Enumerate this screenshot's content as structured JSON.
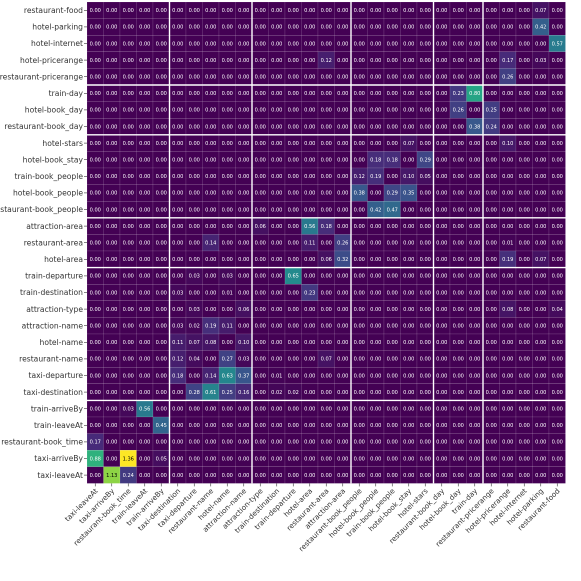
{
  "chart_data": {
    "type": "heatmap",
    "title": "",
    "xlabel": "",
    "ylabel": "",
    "colormap": "viridis",
    "vmin": 0,
    "vmax": 1.36,
    "rows": [
      "restaurant-food",
      "hotel-parking",
      "hotel-internet",
      "hotel-pricerange",
      "restaurant-pricerange",
      "train-day",
      "hotel-book_day",
      "restaurant-book_day",
      "hotel-stars",
      "hotel-book_stay",
      "train-book_people",
      "hotel-book_people",
      "restaurant-book_people",
      "attraction-area",
      "restaurant-area",
      "hotel-area",
      "train-departure",
      "train-destination",
      "attraction-type",
      "attraction-name",
      "hotel-name",
      "restaurant-name",
      "taxi-departure",
      "taxi-destination",
      "train-arriveBy",
      "train-leaveAt",
      "restaurant-book_time",
      "taxi-arriveBy",
      "taxi-leaveAt"
    ],
    "columns": [
      "taxi-leaveAt",
      "taxi-arriveBy",
      "restaurant-book_time",
      "train-leaveAt",
      "train-arriveBy",
      "taxi-destination",
      "taxi-departure",
      "restaurant-name",
      "hotel-name",
      "attraction-name",
      "attraction-type",
      "train-destination",
      "train-departure",
      "hotel-area",
      "restaurant-area",
      "attraction-area",
      "restaurant-book_people",
      "hotel-book_people",
      "train-book_people",
      "hotel-book_stay",
      "hotel-stars",
      "restaurant-book_day",
      "hotel-book_day",
      "train-day",
      "restaurant-pricerange",
      "hotel-pricerange",
      "hotel-internet",
      "hotel-parking",
      "restaurant-food"
    ],
    "group_separators_after_column": [
      4,
      9,
      15,
      20,
      23
    ],
    "group_separators_after_row": [
      4,
      7,
      12,
      15,
      23
    ],
    "values": [
      [
        0.0,
        0.0,
        0.0,
        0.0,
        0.0,
        0.0,
        0.0,
        0.0,
        0.0,
        0.0,
        0.0,
        0.0,
        0.0,
        0.0,
        0.0,
        0.0,
        0.0,
        0.0,
        0.0,
        0.0,
        0.0,
        0.0,
        0.0,
        0.0,
        0.0,
        0.0,
        0.0,
        0.07,
        0.0
      ],
      [
        0.0,
        0.0,
        0.0,
        0.0,
        0.0,
        0.0,
        0.0,
        0.0,
        0.0,
        0.0,
        0.0,
        0.0,
        0.0,
        0.0,
        0.0,
        0.0,
        0.0,
        0.0,
        0.0,
        0.0,
        0.0,
        0.0,
        0.0,
        0.0,
        0.0,
        0.0,
        0.0,
        0.42,
        0.0
      ],
      [
        0.0,
        0.0,
        0.0,
        0.0,
        0.0,
        0.0,
        0.0,
        0.0,
        0.0,
        0.0,
        0.0,
        0.0,
        0.0,
        0.0,
        0.0,
        0.0,
        0.0,
        0.0,
        0.0,
        0.0,
        0.0,
        0.0,
        0.0,
        0.0,
        0.0,
        0.0,
        0.0,
        0.0,
        0.57
      ],
      [
        0.0,
        0.0,
        0.0,
        0.0,
        0.0,
        0.0,
        0.0,
        0.0,
        0.0,
        0.0,
        0.0,
        0.0,
        0.0,
        0.0,
        0.12,
        0.0,
        0.0,
        0.0,
        0.0,
        0.0,
        0.0,
        0.0,
        0.0,
        0.0,
        0.0,
        0.17,
        0.0,
        0.03,
        0.0
      ],
      [
        0.0,
        0.0,
        0.0,
        0.0,
        0.0,
        0.0,
        0.0,
        0.0,
        0.0,
        0.0,
        0.0,
        0.0,
        0.0,
        0.0,
        0.0,
        0.0,
        0.0,
        0.0,
        0.0,
        0.0,
        0.0,
        0.0,
        0.0,
        0.0,
        0.0,
        0.26,
        0.0,
        0.0,
        0.0
      ],
      [
        0.0,
        0.0,
        0.0,
        0.0,
        0.0,
        0.0,
        0.0,
        0.0,
        0.0,
        0.0,
        0.0,
        0.0,
        0.0,
        0.0,
        0.0,
        0.0,
        0.0,
        0.0,
        0.0,
        0.0,
        0.0,
        0.0,
        0.23,
        0.8,
        0.0,
        0.0,
        0.0,
        0.0,
        0.0
      ],
      [
        0.0,
        0.0,
        0.0,
        0.0,
        0.0,
        0.0,
        0.0,
        0.0,
        0.0,
        0.0,
        0.0,
        0.0,
        0.0,
        0.0,
        0.0,
        0.0,
        0.0,
        0.0,
        0.0,
        0.0,
        0.0,
        0.0,
        0.26,
        0.0,
        0.25,
        0.0,
        0.0,
        0.0,
        0.0
      ],
      [
        0.0,
        0.0,
        0.0,
        0.0,
        0.0,
        0.0,
        0.0,
        0.0,
        0.0,
        0.0,
        0.0,
        0.0,
        0.0,
        0.0,
        0.0,
        0.0,
        0.0,
        0.0,
        0.0,
        0.0,
        0.0,
        0.0,
        0.0,
        0.38,
        0.24,
        0.0,
        0.0,
        0.0,
        0.0
      ],
      [
        0.0,
        0.0,
        0.0,
        0.0,
        0.0,
        0.0,
        0.0,
        0.0,
        0.0,
        0.0,
        0.0,
        0.0,
        0.0,
        0.0,
        0.0,
        0.0,
        0.0,
        0.0,
        0.0,
        0.07,
        0.0,
        0.0,
        0.0,
        0.0,
        0.0,
        0.1,
        0.0,
        0.0,
        0.0
      ],
      [
        0.0,
        0.0,
        0.0,
        0.0,
        0.0,
        0.0,
        0.0,
        0.0,
        0.0,
        0.0,
        0.0,
        0.0,
        0.0,
        0.0,
        0.0,
        0.0,
        0.0,
        0.18,
        0.18,
        0.0,
        0.29,
        0.0,
        0.0,
        0.0,
        0.0,
        0.0,
        0.0,
        0.0,
        0.0
      ],
      [
        0.0,
        0.0,
        0.0,
        0.0,
        0.0,
        0.0,
        0.0,
        0.0,
        0.0,
        0.0,
        0.0,
        0.0,
        0.0,
        0.0,
        0.0,
        0.0,
        0.12,
        0.19,
        0.0,
        0.1,
        0.05,
        0.0,
        0.0,
        0.0,
        0.0,
        0.0,
        0.0,
        0.0,
        0.0
      ],
      [
        0.0,
        0.0,
        0.0,
        0.0,
        0.0,
        0.0,
        0.0,
        0.0,
        0.0,
        0.0,
        0.0,
        0.0,
        0.0,
        0.0,
        0.0,
        0.0,
        0.38,
        0.0,
        0.29,
        0.35,
        0.0,
        0.0,
        0.0,
        0.0,
        0.0,
        0.0,
        0.0,
        0.0,
        0.0
      ],
      [
        0.0,
        0.0,
        0.0,
        0.0,
        0.0,
        0.0,
        0.0,
        0.0,
        0.0,
        0.0,
        0.0,
        0.0,
        0.0,
        0.0,
        0.0,
        0.0,
        0.0,
        0.42,
        0.47,
        0.0,
        0.0,
        0.0,
        0.0,
        0.0,
        0.0,
        0.0,
        0.0,
        0.0,
        0.0
      ],
      [
        0.0,
        0.0,
        0.0,
        0.0,
        0.0,
        0.0,
        0.0,
        0.0,
        0.0,
        0.0,
        0.06,
        0.0,
        0.0,
        0.56,
        0.18,
        0.0,
        0.0,
        0.0,
        0.0,
        0.0,
        0.0,
        0.0,
        0.0,
        0.0,
        0.0,
        0.0,
        0.0,
        0.0,
        0.0
      ],
      [
        0.0,
        0.0,
        0.0,
        0.0,
        0.0,
        0.0,
        0.0,
        0.14,
        0.0,
        0.0,
        0.0,
        0.0,
        0.0,
        0.11,
        0.0,
        0.26,
        0.0,
        0.0,
        0.0,
        0.0,
        0.0,
        0.0,
        0.0,
        0.0,
        0.0,
        0.01,
        0.0,
        0.0,
        0.0
      ],
      [
        0.0,
        0.0,
        0.0,
        0.0,
        0.0,
        0.0,
        0.0,
        0.0,
        0.0,
        0.0,
        0.0,
        0.0,
        0.0,
        0.0,
        0.06,
        0.32,
        0.0,
        0.0,
        0.0,
        0.0,
        0.0,
        0.0,
        0.0,
        0.0,
        0.0,
        0.19,
        0.0,
        0.07,
        0.0
      ],
      [
        0.0,
        0.0,
        0.0,
        0.0,
        0.0,
        0.0,
        0.03,
        0.0,
        0.03,
        0.0,
        0.0,
        0.0,
        0.65,
        0.0,
        0.0,
        0.0,
        0.0,
        0.0,
        0.0,
        0.0,
        0.0,
        0.0,
        0.0,
        0.0,
        0.0,
        0.0,
        0.0,
        0.0,
        0.0
      ],
      [
        0.0,
        0.0,
        0.0,
        0.0,
        0.0,
        0.03,
        0.0,
        0.0,
        0.01,
        0.0,
        0.0,
        0.0,
        0.0,
        0.23,
        0.0,
        0.0,
        0.0,
        0.0,
        0.0,
        0.0,
        0.0,
        0.0,
        0.0,
        0.0,
        0.0,
        0.0,
        0.0,
        0.0,
        0.0
      ],
      [
        0.0,
        0.0,
        0.0,
        0.0,
        0.0,
        0.0,
        0.03,
        0.0,
        0.0,
        0.06,
        0.0,
        0.0,
        0.0,
        0.0,
        0.0,
        0.0,
        0.0,
        0.0,
        0.0,
        0.0,
        0.0,
        0.0,
        0.0,
        0.0,
        0.0,
        0.08,
        0.0,
        0.0,
        0.04
      ],
      [
        0.0,
        0.0,
        0.0,
        0.0,
        0.0,
        0.03,
        0.02,
        0.19,
        0.11,
        0.0,
        0.0,
        0.0,
        0.0,
        0.0,
        0.0,
        0.0,
        0.0,
        0.0,
        0.0,
        0.0,
        0.0,
        0.0,
        0.0,
        0.0,
        0.0,
        0.0,
        0.0,
        0.0,
        0.0
      ],
      [
        0.0,
        0.0,
        0.0,
        0.0,
        0.0,
        0.11,
        0.07,
        0.08,
        0.0,
        0.1,
        0.0,
        0.0,
        0.0,
        0.0,
        0.0,
        0.0,
        0.0,
        0.0,
        0.0,
        0.0,
        0.0,
        0.0,
        0.0,
        0.0,
        0.0,
        0.0,
        0.0,
        0.0,
        0.0
      ],
      [
        0.0,
        0.0,
        0.0,
        0.0,
        0.0,
        0.12,
        0.04,
        0.0,
        0.27,
        0.03,
        0.0,
        0.0,
        0.0,
        0.0,
        0.07,
        0.0,
        0.0,
        0.0,
        0.0,
        0.0,
        0.0,
        0.0,
        0.0,
        0.0,
        0.0,
        0.0,
        0.0,
        0.0,
        0.0
      ],
      [
        0.0,
        0.0,
        0.0,
        0.0,
        0.0,
        0.18,
        0.0,
        0.14,
        0.63,
        0.37,
        0.0,
        0.01,
        0.0,
        0.0,
        0.0,
        0.0,
        0.0,
        0.0,
        0.0,
        0.0,
        0.0,
        0.0,
        0.0,
        0.0,
        0.0,
        0.0,
        0.0,
        0.0,
        0.0
      ],
      [
        0.0,
        0.0,
        0.0,
        0.0,
        0.0,
        0.0,
        0.28,
        0.61,
        0.25,
        0.16,
        0.0,
        0.02,
        0.02,
        0.0,
        0.0,
        0.0,
        0.0,
        0.0,
        0.0,
        0.0,
        0.0,
        0.0,
        0.0,
        0.0,
        0.0,
        0.0,
        0.0,
        0.0,
        0.0
      ],
      [
        0.0,
        0.0,
        0.03,
        0.56,
        0.0,
        0.0,
        0.0,
        0.0,
        0.0,
        0.0,
        0.0,
        0.0,
        0.0,
        0.0,
        0.0,
        0.0,
        0.0,
        0.0,
        0.0,
        0.0,
        0.0,
        0.0,
        0.0,
        0.0,
        0.0,
        0.0,
        0.0,
        0.0,
        0.0
      ],
      [
        0.0,
        0.0,
        0.0,
        0.0,
        0.45,
        0.0,
        0.0,
        0.0,
        0.0,
        0.0,
        0.0,
        0.0,
        0.0,
        0.0,
        0.0,
        0.0,
        0.0,
        0.0,
        0.0,
        0.0,
        0.0,
        0.0,
        0.0,
        0.0,
        0.0,
        0.0,
        0.0,
        0.0,
        0.0
      ],
      [
        0.17,
        0.0,
        0.0,
        0.0,
        0.0,
        0.0,
        0.0,
        0.0,
        0.0,
        0.0,
        0.0,
        0.0,
        0.0,
        0.0,
        0.0,
        0.0,
        0.0,
        0.0,
        0.0,
        0.0,
        0.0,
        0.0,
        0.0,
        0.0,
        0.0,
        0.0,
        0.0,
        0.0,
        0.0
      ],
      [
        0.88,
        0.0,
        1.36,
        0.0,
        0.05,
        0.0,
        0.0,
        0.0,
        0.0,
        0.0,
        0.0,
        0.0,
        0.0,
        0.0,
        0.0,
        0.0,
        0.0,
        0.0,
        0.0,
        0.0,
        0.0,
        0.0,
        0.0,
        0.0,
        0.0,
        0.0,
        0.0,
        0.0,
        0.0
      ],
      [
        0.0,
        1.13,
        0.24,
        0.0,
        0.0,
        0.0,
        0.0,
        0.0,
        0.0,
        0.0,
        0.0,
        0.0,
        0.0,
        0.0,
        0.0,
        0.0,
        0.0,
        0.0,
        0.0,
        0.0,
        0.0,
        0.0,
        0.0,
        0.0,
        0.0,
        0.0,
        0.0,
        0.0,
        0.0
      ]
    ]
  }
}
